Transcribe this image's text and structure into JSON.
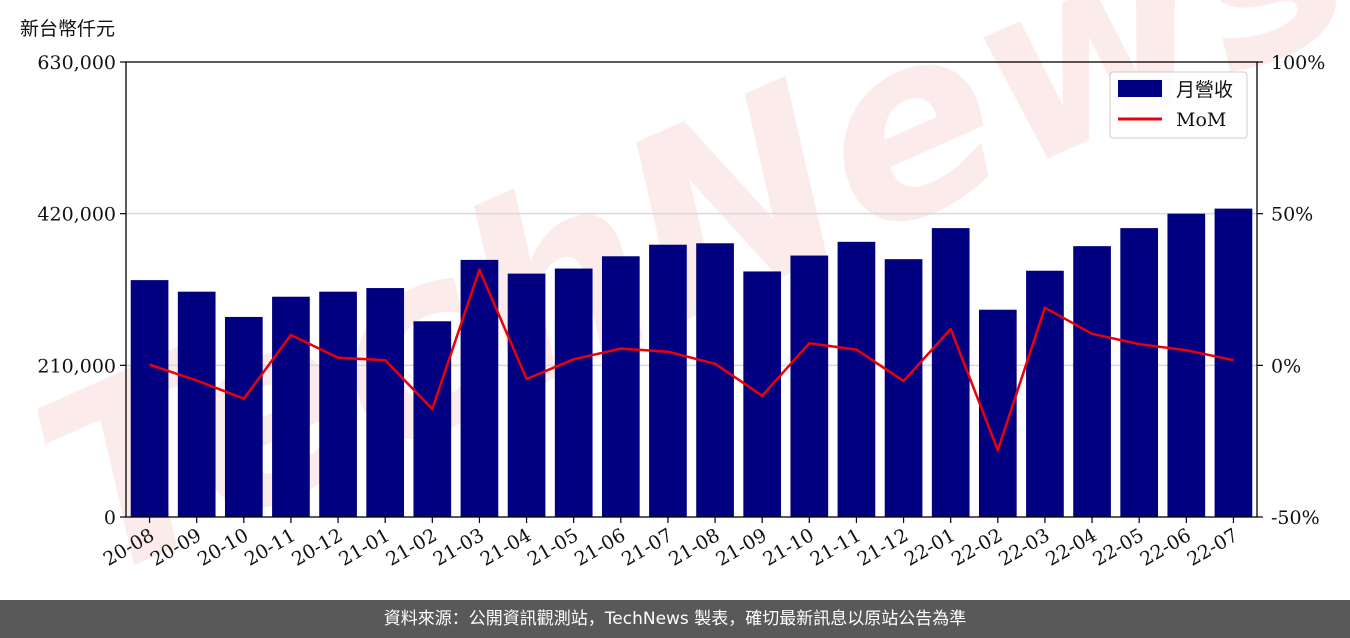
{
  "unit_label": "新台幣仟元",
  "footer_text": "資料來源：公開資訊觀測站，TechNews 製表，確切最新訊息以原站公告為準",
  "watermark_text": "TechNews",
  "colors": {
    "bar": "#000080",
    "line": "#e8000b",
    "grid": "#d9d9d9",
    "footer_bg": "#595959"
  },
  "chart_data": {
    "type": "bar",
    "categories": [
      "20-08",
      "20-09",
      "20-10",
      "20-11",
      "20-12",
      "21-01",
      "21-02",
      "21-03",
      "21-04",
      "21-05",
      "21-06",
      "21-07",
      "21-08",
      "21-09",
      "21-10",
      "21-11",
      "21-12",
      "22-01",
      "22-02",
      "22-03",
      "22-04",
      "22-05",
      "22-06",
      "22-07"
    ],
    "series": [
      {
        "name": "月營收",
        "type": "bar",
        "axis": "left",
        "values": [
          328000,
          312000,
          277000,
          305000,
          312000,
          317000,
          271000,
          356000,
          337000,
          344000,
          361000,
          377000,
          379000,
          340000,
          362000,
          381000,
          357000,
          400000,
          287000,
          341000,
          375000,
          400000,
          420000,
          427000
        ]
      },
      {
        "name": "MoM",
        "type": "line",
        "axis": "right",
        "values": [
          0.2,
          -5.0,
          -11.0,
          10.0,
          2.5,
          1.7,
          -14.4,
          31.5,
          -4.5,
          2.0,
          5.5,
          4.5,
          0.5,
          -10.0,
          7.3,
          5.2,
          -5.2,
          12.0,
          -28.0,
          19.0,
          10.4,
          7.0,
          5.0,
          1.7
        ]
      }
    ],
    "y_left": {
      "ylim": [
        0,
        630000
      ],
      "ticks": [
        0,
        210000,
        420000,
        630000
      ],
      "tick_labels": [
        "0",
        "210,000",
        "420,000",
        "630,000"
      ]
    },
    "y_right": {
      "ylim": [
        -50,
        100
      ],
      "ticks": [
        -50,
        0,
        50,
        100
      ],
      "tick_labels": [
        "-50%",
        "0%",
        "50%",
        "100%"
      ]
    },
    "grid": "horizontal",
    "legend": {
      "placement": "top-right",
      "entries": [
        "月營收",
        "MoM"
      ]
    }
  }
}
